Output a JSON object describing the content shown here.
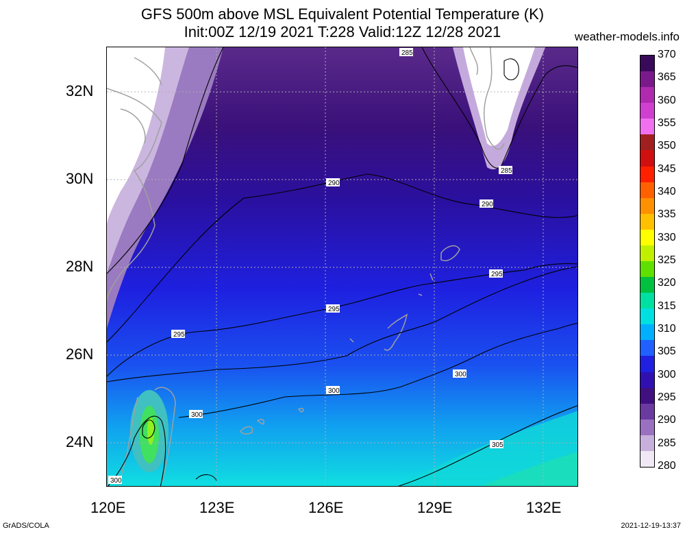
{
  "header": {
    "title_line1": "GFS 500m above MSL Equivalent Potential Temperature (K)",
    "title_line2": "Init:00Z 12/19 2021 T:228 Valid:12Z 12/28 2021",
    "site": "weather-models.info"
  },
  "axes": {
    "lat_labels": [
      "32N",
      "30N",
      "28N",
      "26N",
      "24N"
    ],
    "lon_labels": [
      "120E",
      "123E",
      "126E",
      "129E",
      "132E"
    ]
  },
  "contour_labels": [
    "285",
    "285",
    "290",
    "290",
    "295",
    "295",
    "295",
    "300",
    "300",
    "300",
    "305",
    "300"
  ],
  "colorbar": {
    "labels": [
      "370",
      "365",
      "360",
      "355",
      "350",
      "345",
      "340",
      "335",
      "330",
      "325",
      "320",
      "315",
      "310",
      "305",
      "300",
      "295",
      "290",
      "285",
      "280"
    ],
    "colors": [
      "#3a0a5a",
      "#7a1a8a",
      "#b02ab0",
      "#d040d0",
      "#f070f0",
      "#a02020",
      "#d01010",
      "#ff2000",
      "#ff6000",
      "#ff9000",
      "#ffc000",
      "#ffff00",
      "#c0f000",
      "#60e000",
      "#00c040",
      "#00e0a0",
      "#00e0e0",
      "#00b0ff",
      "#2060ff",
      "#2020e0",
      "#3010b0",
      "#401080",
      "#6a3aa0",
      "#9a70c0",
      "#c8b0dc",
      "#f0e8f4"
    ]
  },
  "footer": {
    "left": "GrADS/COLA",
    "right": "2021-12-19-13:37"
  }
}
